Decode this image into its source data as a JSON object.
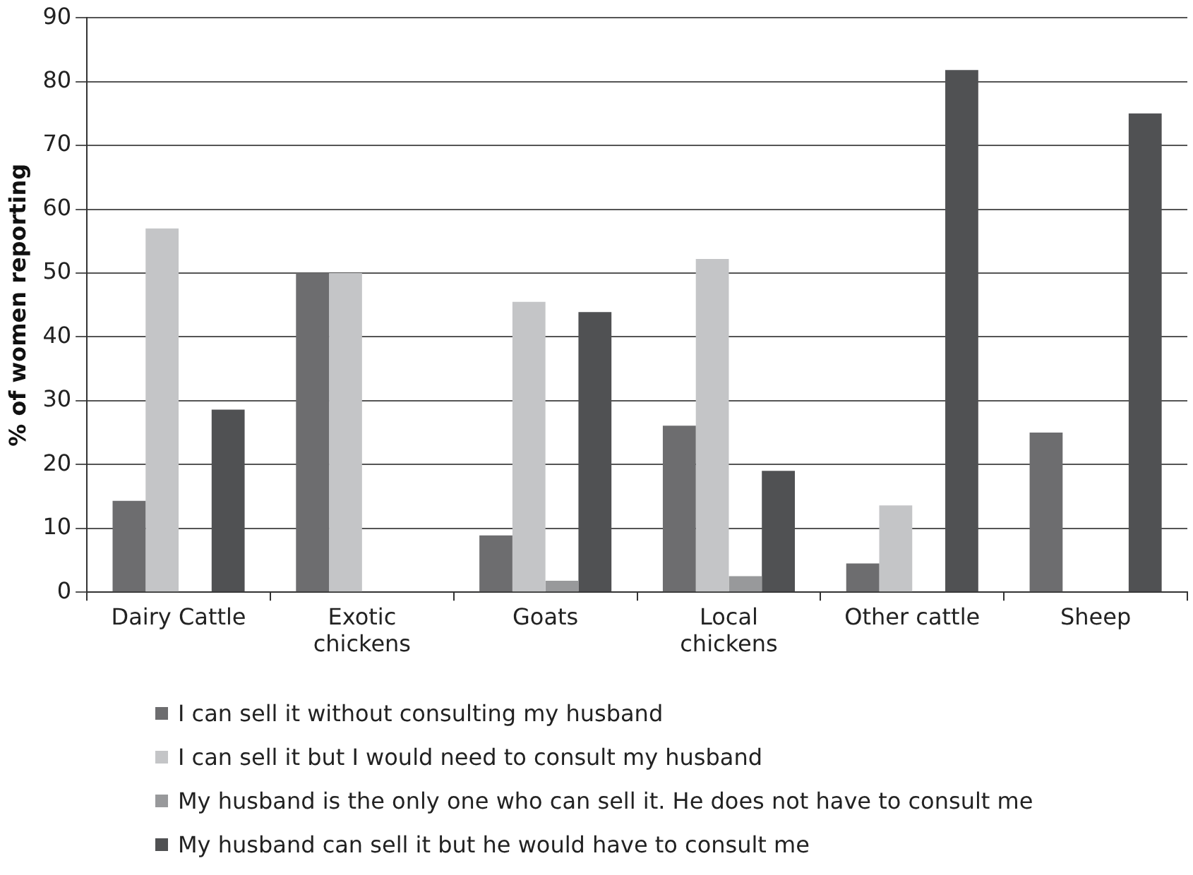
{
  "chart_data": {
    "type": "bar",
    "ylabel": "% of women reporting",
    "categories": [
      "Dairy Cattle",
      "Exotic chickens",
      "Goats",
      "Local chickens",
      "Other cattle",
      "Sheep"
    ],
    "series": [
      {
        "name": "I can sell it without consulting my husband",
        "color": "#6d6d6f",
        "values": [
          14.3,
          50,
          8.9,
          26.1,
          4.5,
          25
        ]
      },
      {
        "name": "I can sell it but I would need to consult my husband",
        "color": "#c4c5c7",
        "values": [
          57,
          50,
          45.5,
          52.2,
          13.6,
          0
        ]
      },
      {
        "name": "My husband is the only one who can sell it. He does not have to consult me",
        "color": "#98999b",
        "values": [
          0,
          0,
          1.8,
          2.5,
          0,
          0
        ]
      },
      {
        "name": "My husband can sell it but he would have to consult me",
        "color": "#505153",
        "values": [
          28.6,
          0,
          43.9,
          19,
          81.8,
          75
        ]
      }
    ],
    "ylim": [
      0,
      90
    ],
    "yticks": [
      0,
      10,
      20,
      30,
      40,
      50,
      60,
      70,
      80,
      90
    ],
    "grid": "y",
    "legend": "bottom"
  }
}
